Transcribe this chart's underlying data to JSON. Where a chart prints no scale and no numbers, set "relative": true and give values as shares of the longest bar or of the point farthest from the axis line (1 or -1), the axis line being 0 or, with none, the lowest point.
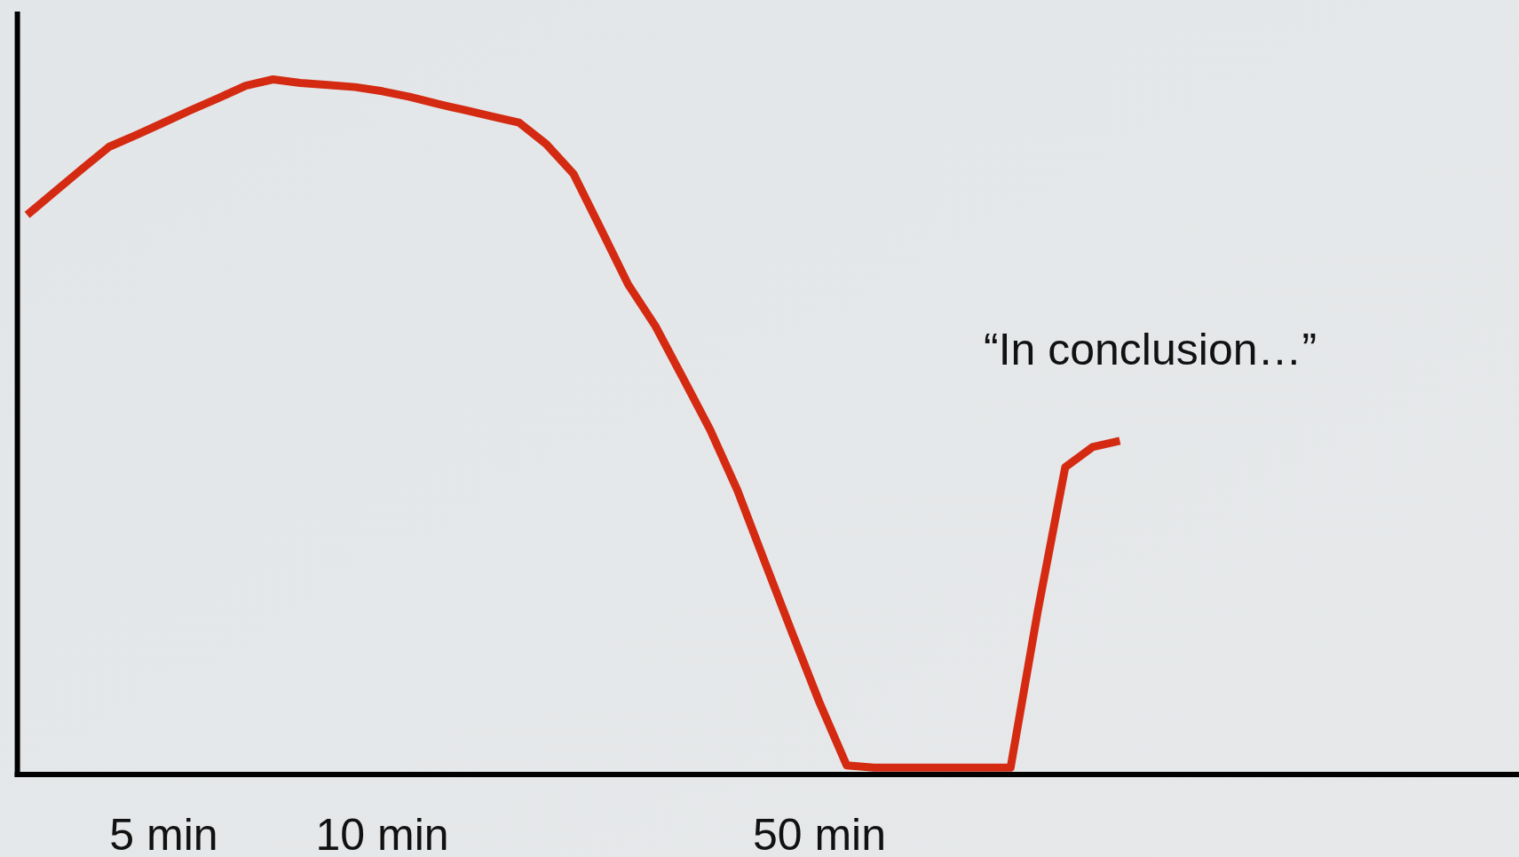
{
  "chart_data": {
    "type": "line",
    "relative": true,
    "color": "#d42a12",
    "categories": [
      null,
      null,
      null,
      null,
      null,
      "5 min",
      null,
      null,
      null,
      null,
      null,
      null,
      null,
      "10 min",
      null,
      null,
      null,
      null,
      null,
      null,
      null,
      null,
      null,
      null,
      null,
      null,
      null,
      null,
      null,
      "50 min",
      null,
      null,
      null,
      null,
      null,
      null,
      null,
      null,
      null,
      null,
      null,
      null,
      null,
      null,
      null,
      null,
      null,
      null,
      null,
      null,
      null,
      null,
      null,
      null,
      null
    ],
    "values": [
      0.805,
      0.838,
      0.871,
      0.903,
      0.92,
      0.938,
      0.956,
      0.973,
      0.991,
      1,
      0.995,
      0.992,
      0.989,
      0.983,
      0.975,
      0.965,
      0.956,
      0.947,
      0.938,
      0.907,
      0.864,
      0.785,
      0.705,
      0.645,
      0.571,
      0.496,
      0.409,
      0.306,
      0.204,
      0.104,
      0.013,
      0.01,
      0.01,
      0.01,
      0.01,
      0.01,
      0.01,
      0.236,
      0.442,
      0.471,
      0.48,
      null,
      null,
      null,
      null,
      null,
      null,
      null,
      null,
      null,
      null,
      null,
      null,
      null,
      null
    ],
    "annotations": [
      "“In conclusion…”"
    ]
  }
}
